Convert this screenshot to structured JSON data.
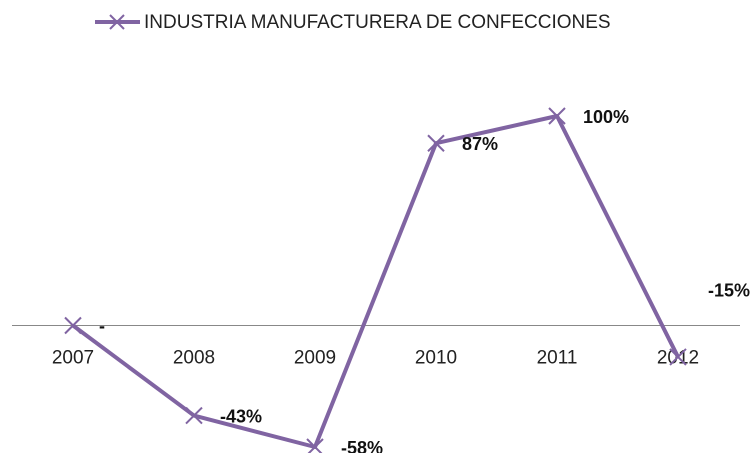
{
  "chart_data": {
    "type": "line",
    "categories": [
      "2007",
      "2008",
      "2009",
      "2010",
      "2011",
      "2012"
    ],
    "series": [
      {
        "name": "INDUSTRIA MANUFACTURERA DE CONFECCIONES",
        "color": "#8064a2",
        "values": [
          0,
          -43,
          -58,
          87,
          100,
          -15
        ],
        "value_labels": [
          "-",
          "-43%",
          "-58%",
          "87%",
          "100%",
          "-15%"
        ]
      }
    ]
  }
}
